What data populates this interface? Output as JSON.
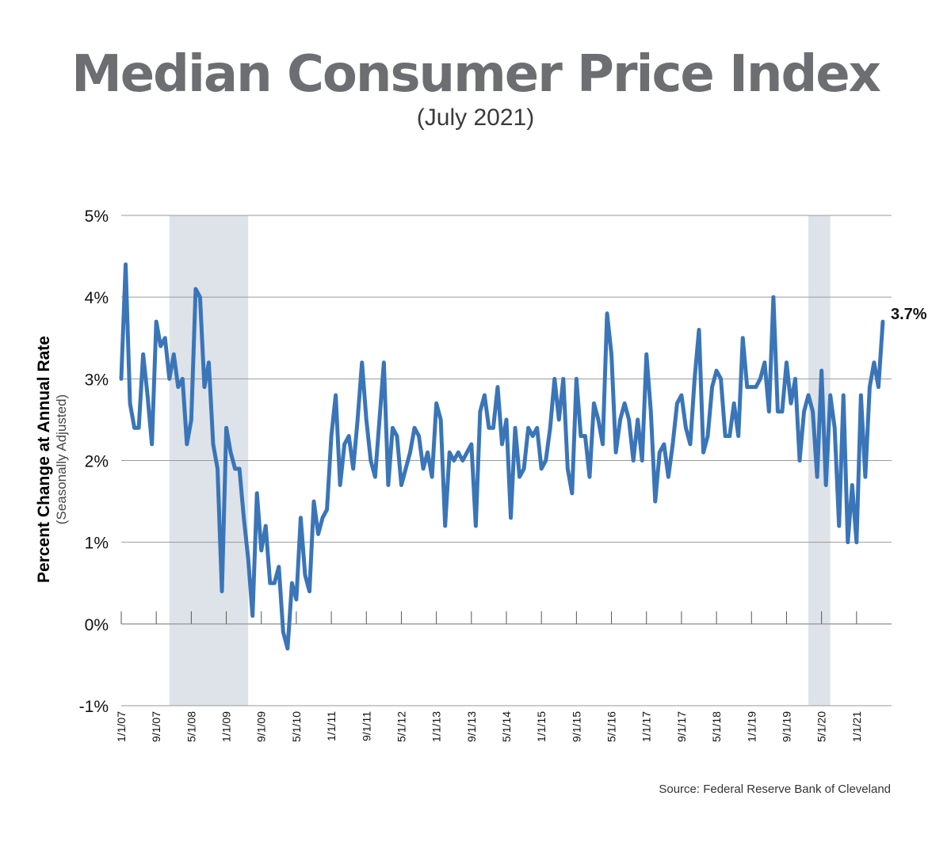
{
  "title": "Median Consumer Price Index",
  "subtitle": "(July 2021)",
  "ylabel": "Percent Change at Annual Rate",
  "ylabel_sub": "(Seasonally Adjusted)",
  "source": "Source: Federal Reserve Bank of Cleveland",
  "colors": {
    "line": "#3a75b8",
    "recession": "#dde3e9",
    "grid": "#9a9a9a",
    "title": "#6d6e71"
  },
  "chart_data": {
    "type": "line",
    "title": "Median Consumer Price Index",
    "xlabel": "",
    "ylabel": "Percent Change at Annual Rate",
    "ylim": [
      -1,
      5
    ],
    "yticks": [
      5,
      4,
      3,
      2,
      1,
      0,
      -1
    ],
    "ytick_labels": [
      "5%",
      "4%",
      "3%",
      "2%",
      "1%",
      "0%",
      "-1%"
    ],
    "grid": true,
    "xtick_labels": [
      "1/1/07",
      "9/1/07",
      "5/1/08",
      "1/1/09",
      "9/1/09",
      "5/1/10",
      "1/1/11",
      "9/1/11",
      "5/1/12",
      "1/1/13",
      "9/1/13",
      "5/1/14",
      "1/1/15",
      "9/1/15",
      "5/1/16",
      "1/1/17",
      "9/1/17",
      "5/1/18",
      "1/1/19",
      "9/1/19",
      "5/1/20",
      "1/1/21"
    ],
    "xtick_dates": [
      "2007-01",
      "2007-09",
      "2008-05",
      "2009-01",
      "2009-09",
      "2010-05",
      "2011-01",
      "2011-09",
      "2012-05",
      "2013-01",
      "2013-09",
      "2014-05",
      "2015-01",
      "2015-09",
      "2016-05",
      "2017-01",
      "2017-09",
      "2018-05",
      "2019-01",
      "2019-09",
      "2020-05",
      "2021-01"
    ],
    "recessions": [
      [
        "2007-12",
        "2009-06"
      ],
      [
        "2020-02",
        "2020-07"
      ]
    ],
    "end_label": "3.7%",
    "series": [
      {
        "start": "2007-01",
        "values": [
          3.0,
          4.4,
          2.7,
          2.4,
          2.4,
          3.3,
          2.8,
          2.2,
          3.7,
          3.4,
          3.5,
          3.0,
          3.3,
          2.9,
          3.0,
          2.2,
          2.5,
          4.1,
          4.0,
          2.9,
          3.2,
          2.2,
          1.9,
          0.4,
          2.4,
          2.1,
          1.9,
          1.9,
          1.3,
          0.8,
          0.1,
          1.6,
          0.9,
          1.2,
          0.5,
          0.5,
          0.7,
          -0.1,
          -0.3,
          0.5,
          0.3,
          1.3,
          0.6,
          0.4,
          1.5,
          1.1,
          1.3,
          1.4,
          2.3,
          2.8,
          1.7,
          2.2,
          2.3,
          1.9,
          2.5,
          3.2,
          2.5,
          2.0,
          1.8,
          2.5,
          3.2,
          1.7,
          2.4,
          2.3,
          1.7,
          1.9,
          2.1,
          2.4,
          2.3,
          1.9,
          2.1,
          1.8,
          2.7,
          2.5,
          1.2,
          2.1,
          2.0,
          2.1,
          2.0,
          2.1,
          2.2,
          1.2,
          2.6,
          2.8,
          2.4,
          2.4,
          2.9,
          2.2,
          2.5,
          1.3,
          2.4,
          1.8,
          1.9,
          2.4,
          2.3,
          2.4,
          1.9,
          2.0,
          2.4,
          3.0,
          2.5,
          3.0,
          1.9,
          1.6,
          3.0,
          2.3,
          2.3,
          1.8,
          2.7,
          2.5,
          2.2,
          3.8,
          3.3,
          2.1,
          2.5,
          2.7,
          2.5,
          2.0,
          2.5,
          2.0,
          3.3,
          2.6,
          1.5,
          2.1,
          2.2,
          1.8,
          2.2,
          2.7,
          2.8,
          2.4,
          2.2,
          3.0,
          3.6,
          2.1,
          2.3,
          2.9,
          3.1,
          3.0,
          2.3,
          2.3,
          2.7,
          2.3,
          3.5,
          2.9,
          2.9,
          2.9,
          3.0,
          3.2,
          2.6,
          4.0,
          2.6,
          2.6,
          3.2,
          2.7,
          3.0,
          2.0,
          2.6,
          2.8,
          2.6,
          1.8,
          3.1,
          1.7,
          2.8,
          2.4,
          1.2,
          2.8,
          1.0,
          1.7,
          1.0,
          2.8,
          1.8,
          2.9,
          3.2,
          2.9,
          3.7
        ]
      }
    ]
  }
}
